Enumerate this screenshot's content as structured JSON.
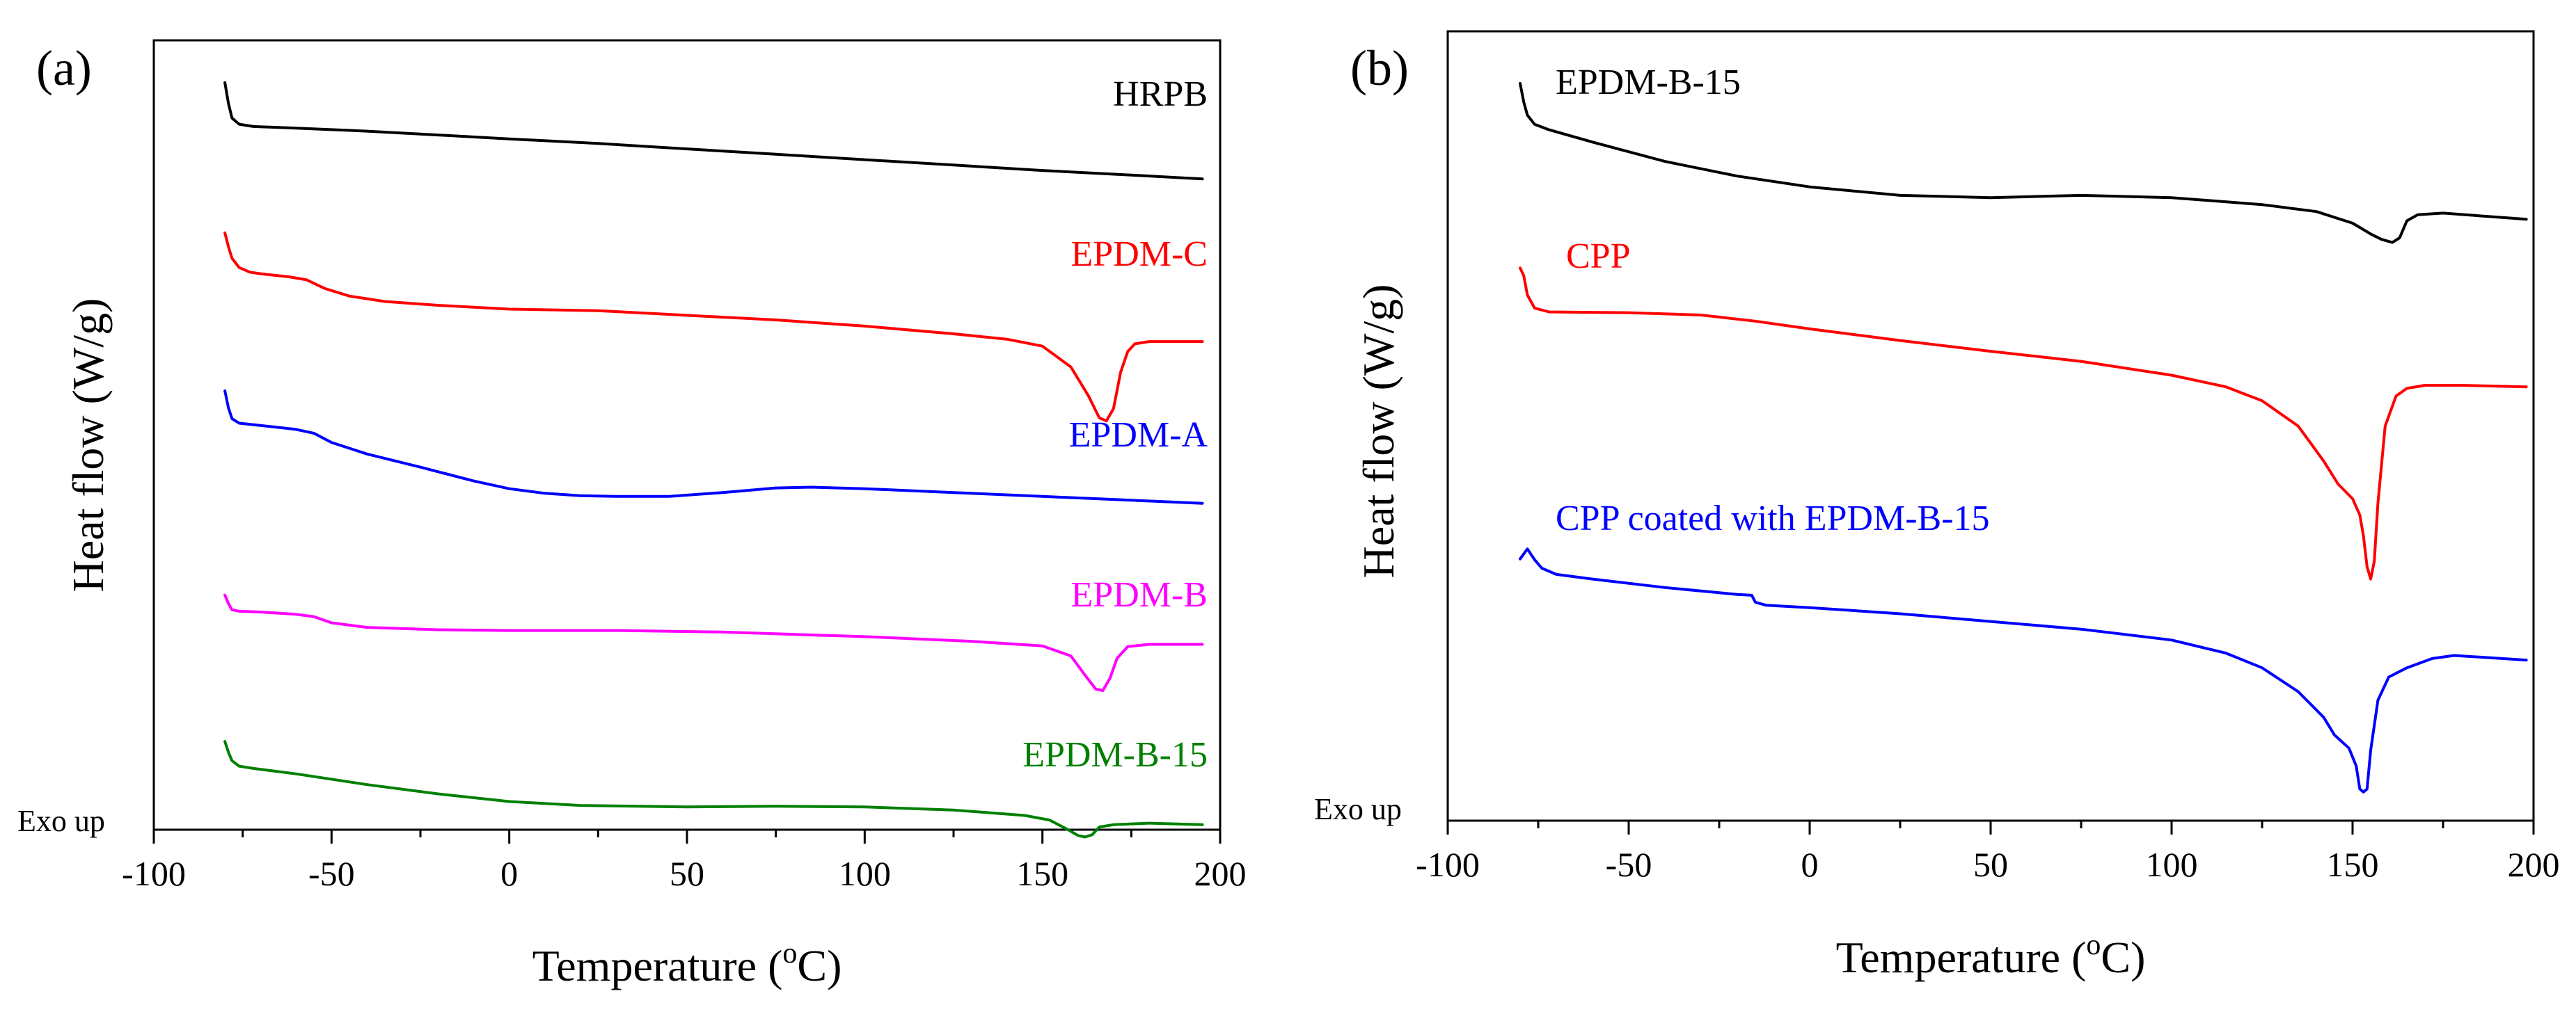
{
  "chart_data": [
    {
      "type": "line",
      "panel_label": "(a)",
      "title": "",
      "xlabel_main": "Temperature (",
      "xlabel_sup": "o",
      "xlabel_end": "C)",
      "ylabel": "Heat flow (W/g)",
      "note": "Exo up",
      "xlim": [
        -100,
        200
      ],
      "ylim": [
        0,
        100
      ],
      "xticks": [
        "-100",
        "-50",
        "0",
        "50",
        "100",
        "150",
        "200"
      ],
      "tick_values": [
        -100,
        -50,
        0,
        50,
        100,
        150,
        200
      ],
      "grid": false,
      "series": [
        {
          "name": "HRPB",
          "color": "#000000",
          "points": [
            [
              -80,
              96.5
            ],
            [
              -79,
              93.8
            ],
            [
              -78,
              91.9
            ],
            [
              -76,
              91.1
            ],
            [
              -72,
              90.8
            ],
            [
              -60,
              90.6
            ],
            [
              -40,
              90.2
            ],
            [
              -20,
              89.7
            ],
            [
              0,
              89.2
            ],
            [
              25,
              88.6
            ],
            [
              50,
              87.9
            ],
            [
              75,
              87.2
            ],
            [
              100,
              86.5
            ],
            [
              125,
              85.8
            ],
            [
              150,
              85.1
            ],
            [
              175,
              84.5
            ],
            [
              195,
              84.0
            ]
          ]
        },
        {
          "name": "EPDM-C",
          "color": "#ff0000",
          "points": [
            [
              -80,
              77.0
            ],
            [
              -79,
              75.2
            ],
            [
              -78,
              73.7
            ],
            [
              -76,
              72.5
            ],
            [
              -73,
              71.9
            ],
            [
              -70,
              71.7
            ],
            [
              -62,
              71.3
            ],
            [
              -57,
              70.9
            ],
            [
              -52,
              69.8
            ],
            [
              -45,
              68.8
            ],
            [
              -35,
              68.1
            ],
            [
              -20,
              67.6
            ],
            [
              0,
              67.1
            ],
            [
              25,
              66.9
            ],
            [
              50,
              66.3
            ],
            [
              75,
              65.7
            ],
            [
              100,
              64.9
            ],
            [
              125,
              63.9
            ],
            [
              140,
              63.2
            ],
            [
              150,
              62.3
            ],
            [
              158,
              59.6
            ],
            [
              163,
              55.8
            ],
            [
              166,
              53.0
            ],
            [
              168,
              52.6
            ],
            [
              170,
              54.2
            ],
            [
              172,
              58.9
            ],
            [
              174,
              61.6
            ],
            [
              176,
              62.6
            ],
            [
              180,
              62.9
            ],
            [
              195,
              62.9
            ]
          ]
        },
        {
          "name": "EPDM-A",
          "color": "#0000ff",
          "points": [
            [
              -80,
              56.5
            ],
            [
              -79,
              54.3
            ],
            [
              -78,
              52.9
            ],
            [
              -76,
              52.3
            ],
            [
              -70,
              52.0
            ],
            [
              -60,
              51.5
            ],
            [
              -55,
              51.0
            ],
            [
              -50,
              49.8
            ],
            [
              -40,
              48.3
            ],
            [
              -25,
              46.6
            ],
            [
              -10,
              44.8
            ],
            [
              0,
              43.8
            ],
            [
              10,
              43.2
            ],
            [
              20,
              42.9
            ],
            [
              30,
              42.8
            ],
            [
              45,
              42.8
            ],
            [
              60,
              43.3
            ],
            [
              75,
              43.9
            ],
            [
              85,
              44.0
            ],
            [
              100,
              43.8
            ],
            [
              125,
              43.3
            ],
            [
              150,
              42.8
            ],
            [
              175,
              42.3
            ],
            [
              195,
              41.9
            ]
          ]
        },
        {
          "name": "EPDM-B",
          "color": "#ff00ff",
          "points": [
            [
              -80,
              30.0
            ],
            [
              -79,
              28.9
            ],
            [
              -78,
              28.1
            ],
            [
              -76,
              27.9
            ],
            [
              -70,
              27.8
            ],
            [
              -60,
              27.5
            ],
            [
              -55,
              27.2
            ],
            [
              -50,
              26.4
            ],
            [
              -40,
              25.8
            ],
            [
              -20,
              25.5
            ],
            [
              0,
              25.4
            ],
            [
              30,
              25.4
            ],
            [
              60,
              25.2
            ],
            [
              100,
              24.6
            ],
            [
              130,
              24.0
            ],
            [
              150,
              23.4
            ],
            [
              158,
              22.1
            ],
            [
              162,
              19.6
            ],
            [
              165,
              17.8
            ],
            [
              167,
              17.6
            ],
            [
              169,
              19.2
            ],
            [
              171,
              21.8
            ],
            [
              174,
              23.3
            ],
            [
              180,
              23.6
            ],
            [
              195,
              23.6
            ]
          ]
        },
        {
          "name": "EPDM-B-15",
          "color": "#008000",
          "points": [
            [
              -80,
              11.0
            ],
            [
              -79,
              9.6
            ],
            [
              -78,
              8.5
            ],
            [
              -76,
              7.8
            ],
            [
              -72,
              7.5
            ],
            [
              -60,
              6.8
            ],
            [
              -40,
              5.4
            ],
            [
              -20,
              4.2
            ],
            [
              0,
              3.2
            ],
            [
              20,
              2.7
            ],
            [
              50,
              2.5
            ],
            [
              75,
              2.6
            ],
            [
              100,
              2.5
            ],
            [
              125,
              2.1
            ],
            [
              145,
              1.4
            ],
            [
              152,
              0.8
            ],
            [
              157,
              -0.4
            ],
            [
              160,
              -1.2
            ],
            [
              162,
              -1.4
            ],
            [
              164,
              -1.1
            ],
            [
              166,
              -0.1
            ],
            [
              170,
              0.2
            ],
            [
              180,
              0.4
            ],
            [
              195,
              0.2
            ]
          ]
        }
      ],
      "labels": [
        {
          "text": "HRPB",
          "color": "#000000"
        },
        {
          "text": "EPDM-C",
          "color": "#ff0000"
        },
        {
          "text": "EPDM-A",
          "color": "#0000ff"
        },
        {
          "text": "EPDM-B",
          "color": "#ff00ff"
        },
        {
          "text": "EPDM-B-15",
          "color": "#008000"
        }
      ]
    },
    {
      "type": "line",
      "panel_label": "(b)",
      "title": "",
      "xlabel_main": "Temperature (",
      "xlabel_sup": "o",
      "xlabel_end": "C)",
      "ylabel": "Heat flow (W/g)",
      "note": "Exo up",
      "xlim": [
        -100,
        200
      ],
      "ylim": [
        0,
        100
      ],
      "xticks": [
        "-100",
        "-50",
        "0",
        "50",
        "100",
        "150",
        "200"
      ],
      "tick_values": [
        -100,
        -50,
        0,
        50,
        100,
        150,
        200
      ],
      "grid": false,
      "series": [
        {
          "name": "EPDM-B-15",
          "color": "#000000",
          "points": [
            [
              -80,
              96.4
            ],
            [
              -79,
              94.0
            ],
            [
              -78,
              92.3
            ],
            [
              -76,
              91.1
            ],
            [
              -72,
              90.4
            ],
            [
              -60,
              88.8
            ],
            [
              -40,
              86.3
            ],
            [
              -20,
              84.4
            ],
            [
              0,
              83.0
            ],
            [
              25,
              81.9
            ],
            [
              50,
              81.6
            ],
            [
              75,
              81.9
            ],
            [
              100,
              81.6
            ],
            [
              125,
              80.7
            ],
            [
              140,
              79.8
            ],
            [
              150,
              78.3
            ],
            [
              155,
              76.9
            ],
            [
              158,
              76.2
            ],
            [
              161,
              75.8
            ],
            [
              163,
              76.4
            ],
            [
              165,
              78.6
            ],
            [
              168,
              79.4
            ],
            [
              175,
              79.6
            ],
            [
              198,
              78.8
            ]
          ]
        },
        {
          "name": "CPP",
          "color": "#ff0000",
          "points": [
            [
              -80,
              72.5
            ],
            [
              -79,
              71.5
            ],
            [
              -78,
              69.0
            ],
            [
              -76,
              67.3
            ],
            [
              -72,
              66.8
            ],
            [
              -50,
              66.7
            ],
            [
              -30,
              66.4
            ],
            [
              -15,
              65.6
            ],
            [
              0,
              64.6
            ],
            [
              25,
              63.1
            ],
            [
              50,
              61.7
            ],
            [
              75,
              60.4
            ],
            [
              100,
              58.6
            ],
            [
              115,
              57.1
            ],
            [
              125,
              55.3
            ],
            [
              135,
              52.0
            ],
            [
              142,
              47.5
            ],
            [
              146,
              44.5
            ],
            [
              150,
              42.6
            ],
            [
              152,
              40.5
            ],
            [
              153,
              37.8
            ],
            [
              154,
              33.8
            ],
            [
              155,
              32.2
            ],
            [
              156,
              34.5
            ],
            [
              157,
              42.0
            ],
            [
              159,
              52.0
            ],
            [
              162,
              55.9
            ],
            [
              165,
              56.9
            ],
            [
              170,
              57.3
            ],
            [
              180,
              57.3
            ],
            [
              198,
              57.1
            ]
          ]
        },
        {
          "name": "CPP coated with EPDM-B-15",
          "color": "#0000ff",
          "points": [
            [
              -80,
              34.8
            ],
            [
              -78,
              36.1
            ],
            [
              -76,
              34.7
            ],
            [
              -74,
              33.6
            ],
            [
              -70,
              32.8
            ],
            [
              -60,
              32.2
            ],
            [
              -40,
              31.1
            ],
            [
              -20,
              30.2
            ],
            [
              -16,
              30.1
            ],
            [
              -15,
              29.2
            ],
            [
              -12,
              28.8
            ],
            [
              0,
              28.5
            ],
            [
              25,
              27.7
            ],
            [
              50,
              26.7
            ],
            [
              75,
              25.7
            ],
            [
              100,
              24.3
            ],
            [
              115,
              22.6
            ],
            [
              125,
              20.7
            ],
            [
              135,
              17.6
            ],
            [
              142,
              14.3
            ],
            [
              145,
              12.0
            ],
            [
              149,
              10.3
            ],
            [
              151,
              8.0
            ],
            [
              152,
              5.0
            ],
            [
              153,
              4.6
            ],
            [
              154,
              5.0
            ],
            [
              155,
              10.0
            ],
            [
              157,
              16.5
            ],
            [
              160,
              19.5
            ],
            [
              165,
              20.7
            ],
            [
              172,
              21.9
            ],
            [
              178,
              22.3
            ],
            [
              198,
              21.7
            ]
          ]
        }
      ],
      "labels": [
        {
          "text": "EPDM-B-15",
          "color": "#000000"
        },
        {
          "text": "CPP",
          "color": "#ff0000"
        },
        {
          "text": "CPP coated with EPDM-B-15",
          "color": "#0000ff"
        }
      ]
    }
  ]
}
